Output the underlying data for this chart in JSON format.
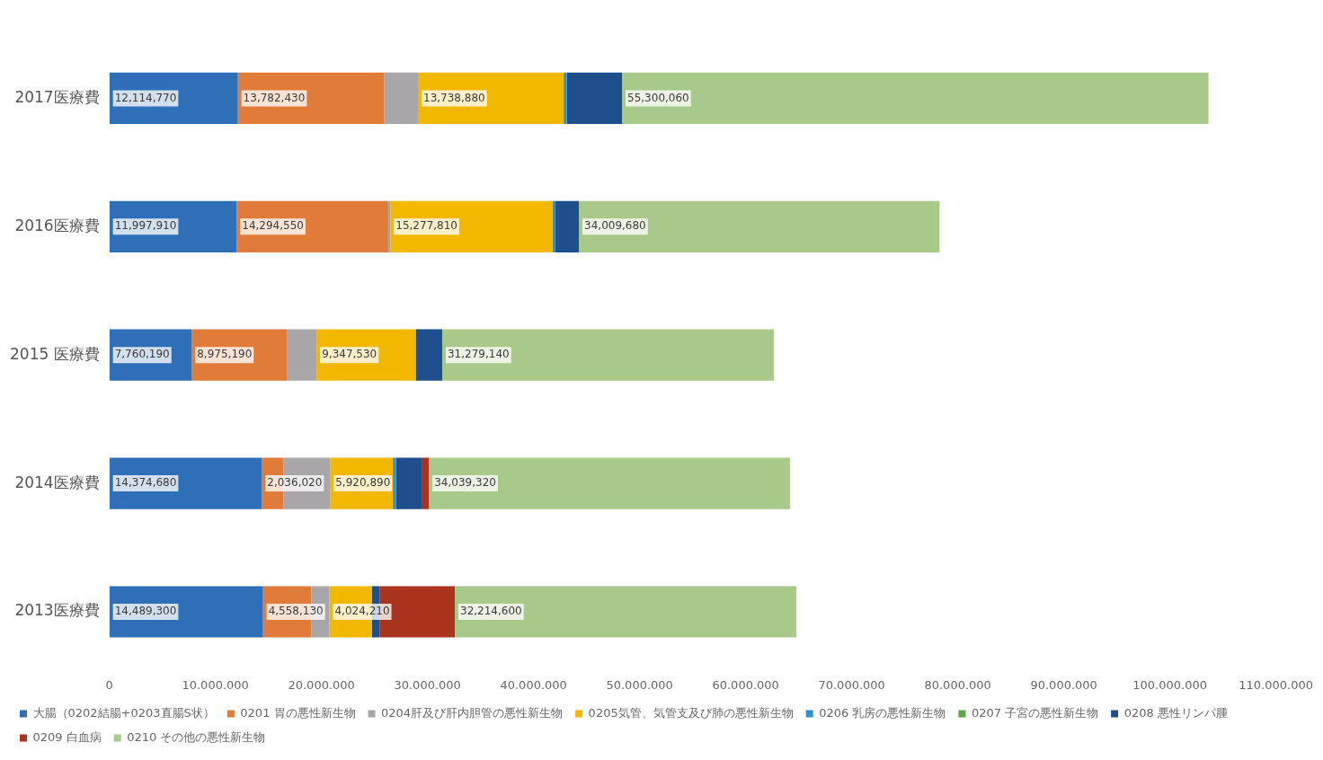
{
  "chart_data": {
    "type": "bar",
    "orientation": "horizontal",
    "stacked": true,
    "categories": [
      "2017医療費",
      "2016医療費",
      "2015 医療費",
      "2014医療費",
      "2013医療費"
    ],
    "series": [
      {
        "name": "大腸（0202結腸+0203直腸S状）",
        "color": "#2e6fb7",
        "values": [
          12114770,
          11997910,
          7760190,
          14374680,
          14489300
        ],
        "value_labels": [
          "12,114,770",
          "11,997,910",
          "7,760,190",
          "14,374,680",
          "14,489,300"
        ]
      },
      {
        "name": "0201 胃の悪性新生物",
        "color": "#e07b39",
        "values": [
          13782430,
          14294550,
          8975190,
          2036020,
          4558130
        ],
        "value_labels": [
          "13,782,430",
          "14,294,550",
          "8,975,190",
          "2,036,020",
          "4,558,130"
        ]
      },
      {
        "name": "0204肝及び肝内胆管の悪性新生物",
        "color": "#a8a6a8",
        "values": [
          3200000,
          200000,
          2800000,
          4400000,
          1700000
        ]
      },
      {
        "name": "0205気管、気管支及び肺の悪性新生物",
        "color": "#f2b800",
        "values": [
          13738880,
          15277810,
          9347530,
          5920890,
          4024210
        ],
        "value_labels": [
          "13,738,880",
          "15,277,810",
          "9,347,530",
          "5,920,890",
          "4,024,210"
        ]
      },
      {
        "name": "0206 乳房の悪性新生物",
        "color": "#2f8fd0",
        "values": [
          300000,
          300000,
          null,
          300000,
          null
        ]
      },
      {
        "name": "0207 子宮の悪性新生物",
        "color": "#5aa845",
        "values": [
          null,
          null,
          null,
          null,
          null
        ]
      },
      {
        "name": "0208 悪性リンパ腫",
        "color": "#1f4e8c",
        "values": [
          5200000,
          2200000,
          2500000,
          2400000,
          700000
        ]
      },
      {
        "name": "0209 白血病",
        "color": "#a9331c",
        "values": [
          null,
          null,
          null,
          700000,
          7100000
        ]
      },
      {
        "name": "0210 その他の悪性新生物",
        "color": "#a8c98a",
        "values": [
          55300060,
          34009680,
          31279140,
          34039320,
          32214600
        ],
        "value_labels": [
          "55,300,060",
          "34,009,680",
          "31,279,140",
          "34,039,320",
          "32,214,600"
        ]
      }
    ],
    "xlim": [
      0,
      110000000
    ],
    "xticks": [
      0,
      {
        "value": 10000000,
        "label": "10.000.000"
      },
      {
        "value": 20000000,
        "label": "20.000.000"
      },
      {
        "value": 30000000,
        "label": "30.000.000"
      },
      {
        "value": 40000000,
        "label": "40.000.000"
      },
      {
        "value": 50000000,
        "label": "50.000.000"
      },
      {
        "value": 60000000,
        "label": "60.000.000"
      },
      {
        "value": 70000000,
        "label": "70.000.000"
      },
      {
        "value": 80000000,
        "label": "80.000.000"
      },
      {
        "value": 90000000,
        "label": "90.000.000"
      },
      {
        "value": 100000000,
        "label": "100.000.000"
      },
      {
        "value": 110000000,
        "label": "110.000.000"
      }
    ],
    "grid": false,
    "legend": "bottom"
  }
}
